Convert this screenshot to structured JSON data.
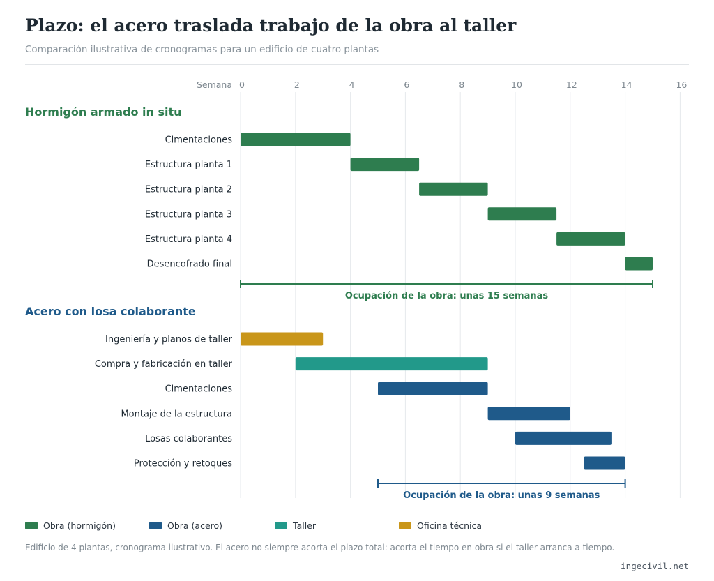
{
  "header": {
    "title": "Plazo: el acero traslada trabajo de la obra al taller",
    "subtitle": "Comparación ilustrativa de cronogramas para un edificio de cuatro plantas"
  },
  "chart_data": {
    "type": "gantt",
    "xlabel": "Semana",
    "xlim": [
      0,
      16
    ],
    "ticks": [
      0,
      2,
      4,
      6,
      8,
      10,
      12,
      14,
      16
    ],
    "grid": true,
    "groups": [
      {
        "name": "Hormigón armado in situ",
        "color": "#2e7d4f",
        "tasks": [
          {
            "label": "Cimentaciones",
            "start": 0,
            "end": 4,
            "category": "obra_hormigon"
          },
          {
            "label": "Estructura planta 1",
            "start": 4,
            "end": 6.5,
            "category": "obra_hormigon"
          },
          {
            "label": "Estructura planta 2",
            "start": 6.5,
            "end": 9,
            "category": "obra_hormigon"
          },
          {
            "label": "Estructura planta 3",
            "start": 9,
            "end": 11.5,
            "category": "obra_hormigon"
          },
          {
            "label": "Estructura planta 4",
            "start": 11.5,
            "end": 14,
            "category": "obra_hormigon"
          },
          {
            "label": "Desencofrado final",
            "start": 14,
            "end": 15,
            "category": "obra_hormigon"
          }
        ],
        "span": {
          "start": 0,
          "end": 15,
          "label": "Ocupación de la obra: unas 15 semanas"
        }
      },
      {
        "name": "Acero con losa colaborante",
        "color": "#1f5a8a",
        "tasks": [
          {
            "label": "Ingeniería y planos de taller",
            "start": 0,
            "end": 3,
            "category": "oficina"
          },
          {
            "label": "Compra y fabricación en taller",
            "start": 2,
            "end": 9,
            "category": "taller"
          },
          {
            "label": "Cimentaciones",
            "start": 5,
            "end": 9,
            "category": "obra_acero"
          },
          {
            "label": "Montaje de la estructura",
            "start": 9,
            "end": 12,
            "category": "obra_acero"
          },
          {
            "label": "Losas colaborantes",
            "start": 10,
            "end": 13.5,
            "category": "obra_acero"
          },
          {
            "label": "Protección y retoques",
            "start": 12.5,
            "end": 14,
            "category": "obra_acero"
          }
        ],
        "span": {
          "start": 5,
          "end": 14,
          "label": "Ocupación de la obra: unas 9 semanas"
        }
      }
    ],
    "categories": {
      "obra_hormigon": {
        "name": "Obra (hormigón)",
        "color": "#2e7d4f"
      },
      "obra_acero": {
        "name": "Obra (acero)",
        "color": "#1f5a8a"
      },
      "taller": {
        "name": "Taller",
        "color": "#22998a"
      },
      "oficina": {
        "name": "Oficina técnica",
        "color": "#c9961a"
      }
    },
    "legend_position": "bottom"
  },
  "legend": [
    {
      "label": "Obra (hormigón)",
      "color": "#2e7d4f"
    },
    {
      "label": "Obra (acero)",
      "color": "#1f5a8a"
    },
    {
      "label": "Taller",
      "color": "#22998a"
    },
    {
      "label": "Oficina técnica",
      "color": "#c9961a"
    }
  ],
  "footer": {
    "note": "Edificio de 4 plantas, cronograma ilustrativo. El acero no siempre acorta el plazo total: acorta el tiempo en obra si el taller arranca a tiempo.",
    "source": "ingecivil.net"
  }
}
